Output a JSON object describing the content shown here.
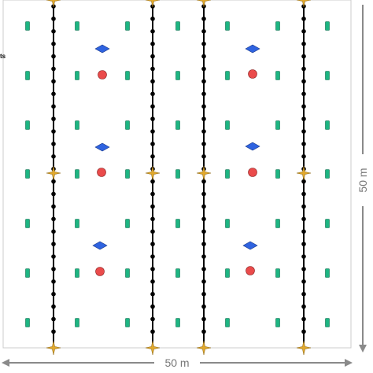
{
  "dimensions": {
    "width_label": "50 m",
    "height_label": "50 m"
  },
  "legend_fragment": "ts",
  "colors": {
    "boundary": "#cccccc",
    "dimension_arrow": "#8a8a8a",
    "row_line": "#000000",
    "row_node": "#000000",
    "anchor_star": "#e0a82e",
    "green_marker": "#1db582",
    "blue_marker": "#2f63e0",
    "red_marker": "#ea4b4b"
  },
  "icons": {
    "anchor": "star-4-point-icon",
    "green": "green-rectangle-icon",
    "blue": "blue-diamond-icon",
    "red": "red-circle-icon"
  }
}
